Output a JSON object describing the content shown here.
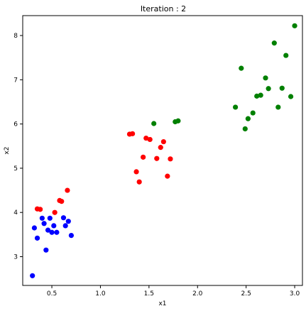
{
  "chart_data": {
    "type": "scatter",
    "title": "Iteration : 2",
    "xlabel": "x1",
    "ylabel": "x2",
    "xlim": [
      0.2,
      3.08
    ],
    "ylim": [
      2.35,
      8.45
    ],
    "xticks": [
      {
        "value": 0.5,
        "label": "0.5"
      },
      {
        "value": 1.0,
        "label": "1.0"
      },
      {
        "value": 1.5,
        "label": "1.5"
      },
      {
        "value": 2.0,
        "label": "2.0"
      },
      {
        "value": 2.5,
        "label": "2.5"
      },
      {
        "value": 3.0,
        "label": "3.0"
      }
    ],
    "yticks": [
      {
        "value": 3,
        "label": "3"
      },
      {
        "value": 4,
        "label": "4"
      },
      {
        "value": 5,
        "label": "5"
      },
      {
        "value": 6,
        "label": "6"
      },
      {
        "value": 7,
        "label": "7"
      },
      {
        "value": 8,
        "label": "8"
      }
    ],
    "grid": false,
    "series": [
      {
        "color": "#0000ff",
        "points": [
          [
            0.3,
            2.57
          ],
          [
            0.32,
            3.65
          ],
          [
            0.35,
            3.42
          ],
          [
            0.4,
            3.87
          ],
          [
            0.42,
            3.75
          ],
          [
            0.44,
            3.15
          ],
          [
            0.46,
            3.6
          ],
          [
            0.48,
            3.87
          ],
          [
            0.5,
            3.55
          ],
          [
            0.52,
            3.7
          ],
          [
            0.55,
            3.55
          ],
          [
            0.62,
            3.88
          ],
          [
            0.64,
            3.7
          ],
          [
            0.67,
            3.8
          ],
          [
            0.7,
            3.48
          ]
        ]
      },
      {
        "color": "#ff0000",
        "points": [
          [
            0.35,
            4.08
          ],
          [
            0.38,
            4.07
          ],
          [
            0.53,
            4.0
          ],
          [
            0.58,
            4.27
          ],
          [
            0.6,
            4.25
          ],
          [
            0.66,
            4.5
          ],
          [
            1.3,
            5.77
          ],
          [
            1.33,
            5.78
          ],
          [
            1.37,
            4.92
          ],
          [
            1.4,
            4.69
          ],
          [
            1.44,
            5.25
          ],
          [
            1.47,
            5.68
          ],
          [
            1.51,
            5.65
          ],
          [
            1.58,
            5.22
          ],
          [
            1.62,
            5.47
          ],
          [
            1.65,
            5.6
          ],
          [
            1.69,
            4.82
          ],
          [
            1.72,
            5.21
          ]
        ]
      },
      {
        "color": "#008000",
        "points": [
          [
            1.55,
            6.01
          ],
          [
            1.77,
            6.05
          ],
          [
            1.8,
            6.07
          ],
          [
            2.39,
            6.38
          ],
          [
            2.45,
            7.26
          ],
          [
            2.49,
            5.89
          ],
          [
            2.52,
            6.12
          ],
          [
            2.57,
            6.25
          ],
          [
            2.61,
            6.63
          ],
          [
            2.65,
            6.65
          ],
          [
            2.7,
            7.04
          ],
          [
            2.73,
            6.8
          ],
          [
            2.79,
            7.83
          ],
          [
            2.83,
            6.38
          ],
          [
            2.87,
            6.81
          ],
          [
            2.91,
            7.55
          ],
          [
            2.96,
            6.62
          ],
          [
            3.0,
            8.22
          ]
        ]
      }
    ]
  }
}
